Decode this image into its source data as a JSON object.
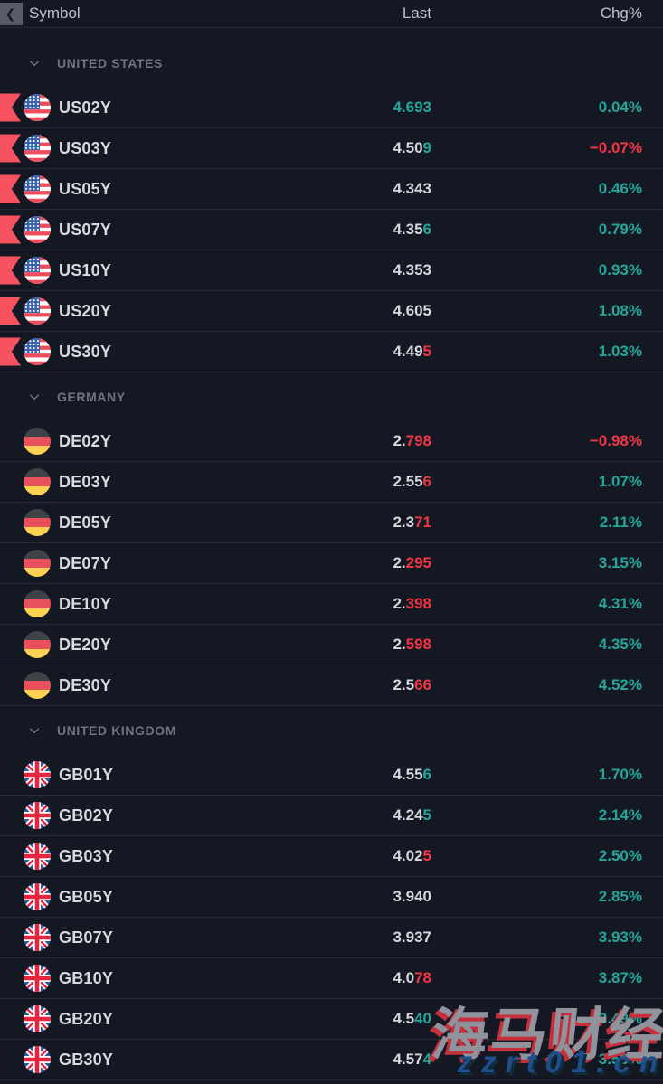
{
  "header": {
    "symbol": "Symbol",
    "last": "Last",
    "chg": "Chg%"
  },
  "icons": {
    "collapse_glyph": "❮",
    "marker": "red-ribbon-flag",
    "group_chevron": "chevron-down"
  },
  "colors": {
    "background": "#141822",
    "separator": "#272c38",
    "up": "#26a69a",
    "down": "#f23645",
    "ribbon": "#f7525f",
    "text": "#d5d8de"
  },
  "groups": [
    {
      "label": "UNITED STATES",
      "rows": [
        {
          "symbol": "US02Y",
          "flag": "us",
          "marker": true,
          "last_main": "",
          "last_tail": "4.693",
          "last_dir": "up",
          "chg": "0.04%",
          "chg_dir": "up"
        },
        {
          "symbol": "US03Y",
          "flag": "us",
          "marker": true,
          "last_main": "4.50",
          "last_tail": "9",
          "last_dir": "up",
          "chg": "−0.07%",
          "chg_dir": "down"
        },
        {
          "symbol": "US05Y",
          "flag": "us",
          "marker": true,
          "last_main": "4.343",
          "last_tail": "",
          "last_dir": "",
          "chg": "0.46%",
          "chg_dir": "up"
        },
        {
          "symbol": "US07Y",
          "flag": "us",
          "marker": true,
          "last_main": "4.35",
          "last_tail": "6",
          "last_dir": "up",
          "chg": "0.79%",
          "chg_dir": "up"
        },
        {
          "symbol": "US10Y",
          "flag": "us",
          "marker": true,
          "last_main": "4.353",
          "last_tail": "",
          "last_dir": "",
          "chg": "0.93%",
          "chg_dir": "up"
        },
        {
          "symbol": "US20Y",
          "flag": "us",
          "marker": true,
          "last_main": "4.605",
          "last_tail": "",
          "last_dir": "",
          "chg": "1.08%",
          "chg_dir": "up"
        },
        {
          "symbol": "US30Y",
          "flag": "us",
          "marker": true,
          "last_main": "4.49",
          "last_tail": "5",
          "last_dir": "down",
          "chg": "1.03%",
          "chg_dir": "up"
        }
      ]
    },
    {
      "label": "GERMANY",
      "rows": [
        {
          "symbol": "DE02Y",
          "flag": "de",
          "marker": false,
          "last_main": "2.",
          "last_tail": "798",
          "last_dir": "down",
          "chg": "−0.98%",
          "chg_dir": "down"
        },
        {
          "symbol": "DE03Y",
          "flag": "de",
          "marker": false,
          "last_main": "2.55",
          "last_tail": "6",
          "last_dir": "down",
          "chg": "1.07%",
          "chg_dir": "up"
        },
        {
          "symbol": "DE05Y",
          "flag": "de",
          "marker": false,
          "last_main": "2.3",
          "last_tail": "71",
          "last_dir": "down",
          "chg": "2.11%",
          "chg_dir": "up"
        },
        {
          "symbol": "DE07Y",
          "flag": "de",
          "marker": false,
          "last_main": "2.",
          "last_tail": "295",
          "last_dir": "down",
          "chg": "3.15%",
          "chg_dir": "up"
        },
        {
          "symbol": "DE10Y",
          "flag": "de",
          "marker": false,
          "last_main": "2.",
          "last_tail": "398",
          "last_dir": "down",
          "chg": "4.31%",
          "chg_dir": "up"
        },
        {
          "symbol": "DE20Y",
          "flag": "de",
          "marker": false,
          "last_main": "2.",
          "last_tail": "598",
          "last_dir": "down",
          "chg": "4.35%",
          "chg_dir": "up"
        },
        {
          "symbol": "DE30Y",
          "flag": "de",
          "marker": false,
          "last_main": "2.5",
          "last_tail": "66",
          "last_dir": "down",
          "chg": "4.52%",
          "chg_dir": "up"
        }
      ]
    },
    {
      "label": "UNITED KINGDOM",
      "rows": [
        {
          "symbol": "GB01Y",
          "flag": "gb",
          "marker": false,
          "last_main": "4.55",
          "last_tail": "6",
          "last_dir": "up",
          "chg": "1.70%",
          "chg_dir": "up"
        },
        {
          "symbol": "GB02Y",
          "flag": "gb",
          "marker": false,
          "last_main": "4.24",
          "last_tail": "5",
          "last_dir": "up",
          "chg": "2.14%",
          "chg_dir": "up"
        },
        {
          "symbol": "GB03Y",
          "flag": "gb",
          "marker": false,
          "last_main": "4.02",
          "last_tail": "5",
          "last_dir": "down",
          "chg": "2.50%",
          "chg_dir": "up"
        },
        {
          "symbol": "GB05Y",
          "flag": "gb",
          "marker": false,
          "last_main": "3.940",
          "last_tail": "",
          "last_dir": "",
          "chg": "2.85%",
          "chg_dir": "up"
        },
        {
          "symbol": "GB07Y",
          "flag": "gb",
          "marker": false,
          "last_main": "3.937",
          "last_tail": "",
          "last_dir": "",
          "chg": "3.93%",
          "chg_dir": "up"
        },
        {
          "symbol": "GB10Y",
          "flag": "gb",
          "marker": false,
          "last_main": "4.0",
          "last_tail": "78",
          "last_dir": "down",
          "chg": "3.87%",
          "chg_dir": "up"
        },
        {
          "symbol": "GB20Y",
          "flag": "gb",
          "marker": false,
          "last_main": "4.5",
          "last_tail": "40",
          "last_dir": "up",
          "chg": "3.49%",
          "chg_dir": "up"
        },
        {
          "symbol": "GB30Y",
          "flag": "gb",
          "marker": false,
          "last_main": "4.57",
          "last_tail": "4",
          "last_dir": "up",
          "chg": "3.53%",
          "chg_dir": "up"
        }
      ]
    }
  ],
  "watermark": {
    "line1": "海马财经",
    "line2": "zzrt01.cn"
  }
}
